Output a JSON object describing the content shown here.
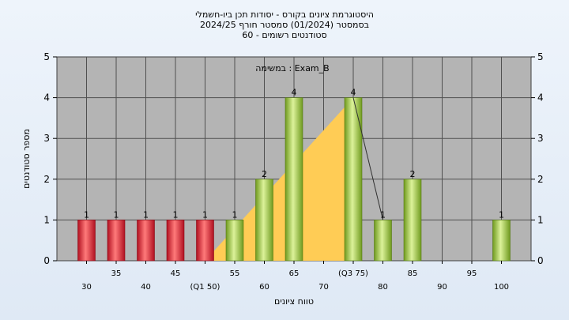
{
  "chart_data": {
    "type": "bar",
    "title_lines": [
      "היסטוגרמת ציונים בקורס - יסודות תכן ביו-חשמלי",
      "בסמסטר  (01/2024)  סמסטר חורף  2024/25",
      "סטודנטים רשומים - 60"
    ],
    "annotation": "במשימה : Exam_B",
    "xlabel": "טווח ציונים",
    "ylabel": "מספר סטודנטים",
    "xlim": [
      25,
      105
    ],
    "ylim": [
      0,
      5
    ],
    "y_ticks": [
      "0",
      "1",
      "2",
      "3",
      "4",
      "5"
    ],
    "x_ticks_row1": [
      {
        "x": 35,
        "label": "35"
      },
      {
        "x": 45,
        "label": "45"
      },
      {
        "x": 55,
        "label": "55"
      },
      {
        "x": 65,
        "label": "65"
      },
      {
        "x": 75,
        "label": "(Q3 75)"
      },
      {
        "x": 85,
        "label": "85"
      },
      {
        "x": 95,
        "label": "95"
      }
    ],
    "x_ticks_row2": [
      {
        "x": 30,
        "label": "30"
      },
      {
        "x": 40,
        "label": "40"
      },
      {
        "x": 50,
        "label": "(Q1 50)"
      },
      {
        "x": 60,
        "label": "60"
      },
      {
        "x": 70,
        "label": "70"
      },
      {
        "x": 80,
        "label": "80"
      },
      {
        "x": 90,
        "label": "90"
      },
      {
        "x": 100,
        "label": "100"
      }
    ],
    "bars": [
      {
        "x": 30,
        "value": 1,
        "color": "red"
      },
      {
        "x": 35,
        "value": 1,
        "color": "red"
      },
      {
        "x": 40,
        "value": 1,
        "color": "red"
      },
      {
        "x": 45,
        "value": 1,
        "color": "red"
      },
      {
        "x": 50,
        "value": 1,
        "color": "red"
      },
      {
        "x": 55,
        "value": 1,
        "color": "green"
      },
      {
        "x": 60,
        "value": 2,
        "color": "green"
      },
      {
        "x": 65,
        "value": 4,
        "color": "green"
      },
      {
        "x": 75,
        "value": 4,
        "color": "green"
      },
      {
        "x": 80,
        "value": 1,
        "color": "green"
      },
      {
        "x": 85,
        "value": 2,
        "color": "green"
      },
      {
        "x": 100,
        "value": 1,
        "color": "green"
      }
    ],
    "area": {
      "x": [
        50,
        75,
        75
      ],
      "y": [
        0,
        4,
        0
      ],
      "color": "#ffcc55"
    },
    "line": {
      "x": [
        75,
        80
      ],
      "y": [
        4,
        1
      ]
    },
    "colors": {
      "plot_bg": "#b4b4b4",
      "red_dark": "#b01020",
      "red_light": "#ff7070",
      "green_dark": "#6f9a1e",
      "green_light": "#d9f08a"
    },
    "grid": true
  }
}
